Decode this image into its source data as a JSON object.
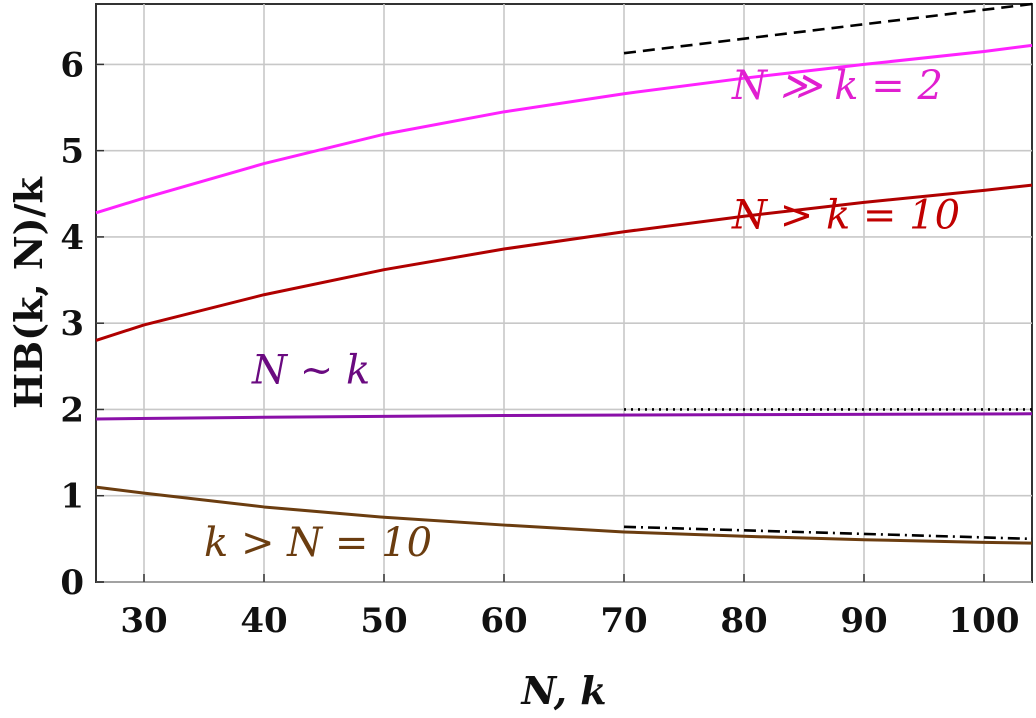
{
  "chart_data": {
    "type": "line",
    "title": "",
    "xlabel": "N, k",
    "ylabel": "HB(k, N)/k",
    "xlim": [
      26,
      104
    ],
    "ylim": [
      0,
      6.7
    ],
    "xticks": [
      30,
      40,
      50,
      60,
      70,
      80,
      90,
      100
    ],
    "yticks": [
      0,
      1,
      2,
      3,
      4,
      5,
      6
    ],
    "grid": true,
    "legend": "none",
    "series": [
      {
        "name": "N ≫ k = 2",
        "color": "#ff22ff",
        "style": "solid",
        "x": [
          26,
          30,
          40,
          50,
          60,
          70,
          80,
          90,
          100,
          104
        ],
        "y": [
          4.28,
          4.45,
          4.85,
          5.19,
          5.45,
          5.66,
          5.84,
          6.0,
          6.15,
          6.22
        ]
      },
      {
        "name": "N > k = 10",
        "color": "#b00000",
        "style": "solid",
        "x": [
          26,
          30,
          40,
          50,
          60,
          70,
          80,
          90,
          100,
          104
        ],
        "y": [
          2.8,
          2.98,
          3.33,
          3.62,
          3.86,
          4.06,
          4.24,
          4.4,
          4.54,
          4.6
        ]
      },
      {
        "name": "N ~ k",
        "color": "#8a10a8",
        "style": "solid",
        "x": [
          26,
          40,
          60,
          80,
          104
        ],
        "y": [
          1.89,
          1.91,
          1.93,
          1.94,
          1.95
        ]
      },
      {
        "name": "k > N = 10",
        "color": "#6b3d10",
        "style": "solid",
        "x": [
          26,
          30,
          40,
          50,
          60,
          70,
          80,
          90,
          100,
          104
        ],
        "y": [
          1.1,
          1.03,
          0.87,
          0.75,
          0.66,
          0.58,
          0.53,
          0.49,
          0.46,
          0.45
        ]
      },
      {
        "name": "",
        "color": "#000000",
        "style": "dashed",
        "x": [
          70,
          104
        ],
        "y": [
          6.13,
          6.7
        ]
      },
      {
        "name": "",
        "color": "#000000",
        "style": "dotted",
        "x": [
          70,
          104
        ],
        "y": [
          2.0,
          2.0
        ]
      },
      {
        "name": "",
        "color": "#000000",
        "style": "dashdot",
        "x": [
          70,
          104
        ],
        "y": [
          0.64,
          0.5
        ]
      }
    ],
    "annotations": [
      {
        "text": "N ≫ k = 2",
        "x": 79,
        "y": 5.6,
        "color": "#e01fd0"
      },
      {
        "text": "N > k = 10",
        "x": 79,
        "y": 4.1,
        "color": "#c00000"
      },
      {
        "text": "N ~ k",
        "x": 39,
        "y": 2.3,
        "color": "#6a0a80"
      },
      {
        "text": "k > N = 10",
        "x": 35,
        "y": 0.3,
        "color": "#6b3d10"
      }
    ]
  }
}
